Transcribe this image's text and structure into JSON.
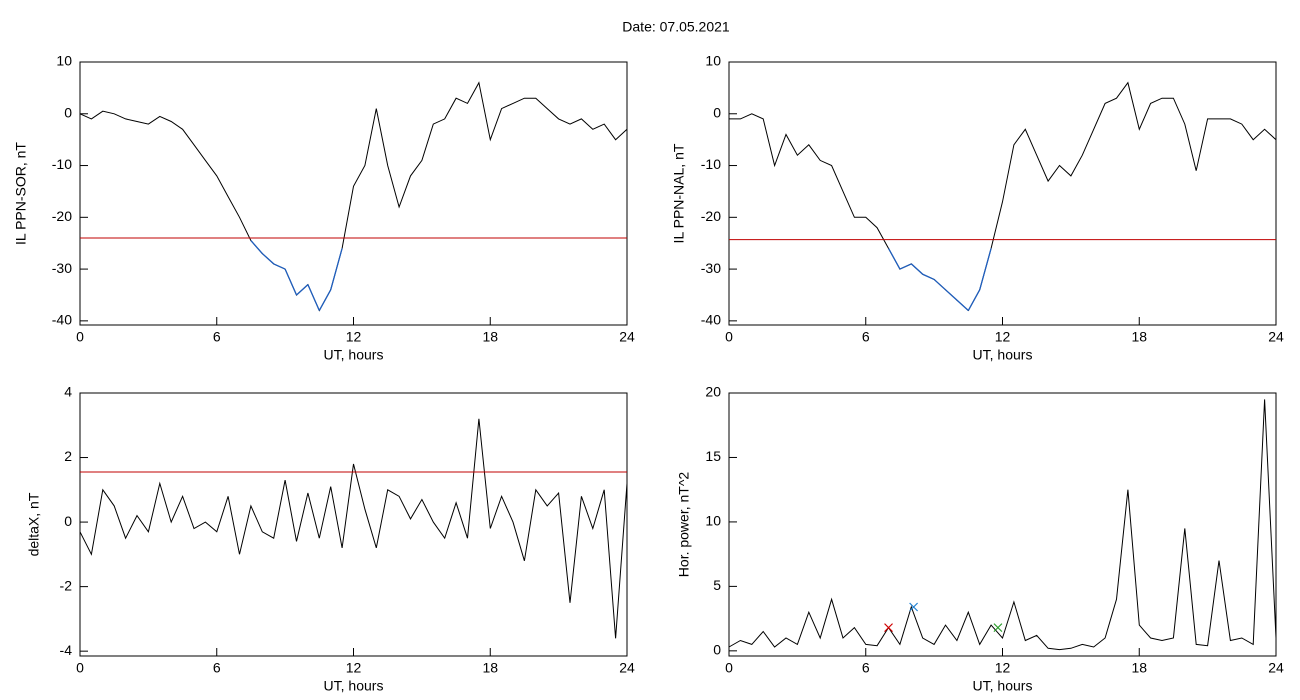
{
  "title": "Date:  07.05.2021",
  "chart_data": [
    {
      "type": "line",
      "ylabel": "IL PPN-SOR, nT",
      "xlabel": "UT, hours",
      "color": "#000000",
      "xlim": [
        0,
        24
      ],
      "xticks": [
        0,
        6,
        12,
        18,
        24
      ],
      "ylim": [
        -40.8,
        10
      ],
      "yticks": [
        10,
        0,
        -10,
        -20,
        -30,
        -40
      ],
      "threshold": {
        "value": -24,
        "color": "#c00000"
      },
      "highlight_color": "#1f5fbf",
      "x": [
        0,
        0.5,
        1,
        1.5,
        2,
        2.5,
        3,
        3.5,
        4,
        4.5,
        5,
        5.5,
        6,
        6.5,
        7,
        7.5,
        8,
        8.5,
        9,
        9.5,
        10,
        10.5,
        11,
        11.5,
        12,
        12.5,
        13,
        13.5,
        14,
        14.5,
        15,
        15.5,
        16,
        16.5,
        17,
        17.5,
        18,
        18.5,
        19,
        19.5,
        20,
        20.5,
        21,
        21.5,
        22,
        22.5,
        23,
        23.5,
        24
      ],
      "values": [
        0,
        -1,
        0.5,
        0,
        -1,
        -1.5,
        -2,
        -0.5,
        -1.5,
        -3,
        -6,
        -9,
        -12,
        -16,
        -20,
        -24.5,
        -27,
        -29,
        -30,
        -35,
        -33,
        -38,
        -34,
        -26,
        -14,
        -10,
        1,
        -10,
        -18,
        -12,
        -9,
        -2,
        -1,
        3,
        2,
        6,
        -5,
        1,
        2,
        3,
        3,
        1,
        -1,
        -2,
        -1,
        -3,
        -2,
        -5,
        -3
      ]
    },
    {
      "type": "line",
      "ylabel": "IL PPN-NAL, nT",
      "xlabel": "UT, hours",
      "color": "#000000",
      "xlim": [
        0,
        24
      ],
      "xticks": [
        0,
        6,
        12,
        18,
        24
      ],
      "ylim": [
        -40.8,
        10
      ],
      "yticks": [
        10,
        0,
        -10,
        -20,
        -30,
        -40
      ],
      "threshold": {
        "value": -24.3,
        "color": "#c00000"
      },
      "highlight_color": "#1f5fbf",
      "x": [
        0,
        0.5,
        1,
        1.5,
        2,
        2.5,
        3,
        3.5,
        4,
        4.5,
        5,
        5.5,
        6,
        6.5,
        7,
        7.5,
        8,
        8.5,
        9,
        9.5,
        10,
        10.5,
        11,
        11.5,
        12,
        12.5,
        13,
        13.5,
        14,
        14.5,
        15,
        15.5,
        16,
        16.5,
        17,
        17.5,
        18,
        18.5,
        19,
        19.5,
        20,
        20.5,
        21,
        21.5,
        22,
        22.5,
        23,
        23.5,
        24
      ],
      "values": [
        -1,
        -1,
        0,
        -1,
        -10,
        -4,
        -8,
        -6,
        -9,
        -10,
        -15,
        -20,
        -20,
        -22,
        -26,
        -30,
        -29,
        -31,
        -32,
        -34,
        -36,
        -38,
        -34,
        -26,
        -17,
        -6,
        -3,
        -8,
        -13,
        -10,
        -12,
        -8,
        -3,
        2,
        3,
        6,
        -3,
        2,
        3,
        3,
        -2,
        -11,
        -1,
        -1,
        -1,
        -2,
        -5,
        -3,
        -5
      ]
    },
    {
      "type": "line",
      "ylabel": "deltaX, nT",
      "xlabel": "UT, hours",
      "color": "#000000",
      "xlim": [
        0,
        24
      ],
      "xticks": [
        0,
        6,
        12,
        18,
        24
      ],
      "ylim": [
        -4.15,
        4
      ],
      "yticks": [
        4,
        2,
        0,
        -2,
        -4
      ],
      "threshold": {
        "value": 1.55,
        "color": "#c00000"
      },
      "x": [
        0,
        0.5,
        1,
        1.5,
        2,
        2.5,
        3,
        3.5,
        4,
        4.5,
        5,
        5.5,
        6,
        6.5,
        7,
        7.5,
        8,
        8.5,
        9,
        9.5,
        10,
        10.5,
        11,
        11.5,
        12,
        12.5,
        13,
        13.5,
        14,
        14.5,
        15,
        15.5,
        16,
        16.5,
        17,
        17.5,
        18,
        18.5,
        19,
        19.5,
        20,
        20.5,
        21,
        21.5,
        22,
        22.5,
        23,
        23.5,
        24
      ],
      "values": [
        -0.3,
        -1,
        1,
        0.5,
        -0.5,
        0.2,
        -0.3,
        1.2,
        0,
        0.8,
        -0.2,
        0,
        -0.3,
        0.8,
        -1,
        0.5,
        -0.3,
        -0.5,
        1.3,
        -0.6,
        0.9,
        -0.5,
        1.1,
        -0.8,
        1.8,
        0.4,
        -0.8,
        1,
        0.8,
        0.1,
        0.7,
        0,
        -0.5,
        0.6,
        -0.5,
        3.2,
        -0.2,
        0.8,
        0,
        -1.2,
        1,
        0.5,
        0.9,
        -2.5,
        0.8,
        -0.2,
        1,
        -3.6,
        1.2
      ]
    },
    {
      "type": "line",
      "ylabel": "Hor. power, nT^2",
      "xlabel": "UT, hours",
      "color": "#000000",
      "xlim": [
        0,
        24
      ],
      "xticks": [
        0,
        6,
        12,
        18,
        24
      ],
      "ylim": [
        -0.4,
        20
      ],
      "yticks": [
        20,
        15,
        10,
        5,
        0
      ],
      "x": [
        0,
        0.5,
        1,
        1.5,
        2,
        2.5,
        3,
        3.5,
        4,
        4.5,
        5,
        5.5,
        6,
        6.5,
        7,
        7.5,
        8,
        8.5,
        9,
        9.5,
        10,
        10.5,
        11,
        11.5,
        12,
        12.5,
        13,
        13.5,
        14,
        14.5,
        15,
        15.5,
        16,
        16.5,
        17,
        17.5,
        18,
        18.5,
        19,
        19.5,
        20,
        20.5,
        21,
        21.5,
        22,
        22.5,
        23,
        23.5,
        24
      ],
      "values": [
        0.3,
        0.8,
        0.5,
        1.5,
        0.3,
        1,
        0.5,
        3,
        1,
        4,
        1,
        1.8,
        0.5,
        0.4,
        1.8,
        0.5,
        3.4,
        1,
        0.5,
        2,
        0.8,
        3,
        0.5,
        2,
        1,
        3.8,
        0.8,
        1.2,
        0.2,
        0.1,
        0.2,
        0.5,
        0.3,
        1,
        4,
        12.5,
        2,
        1,
        0.8,
        1,
        9.5,
        0.5,
        0.4,
        7,
        0.8,
        1,
        0.5,
        19.5,
        1
      ],
      "markers": [
        {
          "x": 7,
          "y": 1.8,
          "color": "#d00000"
        },
        {
          "x": 8.1,
          "y": 3.4,
          "color": "#1f7fd0"
        },
        {
          "x": 11.8,
          "y": 1.8,
          "color": "#2a9d2a"
        }
      ]
    }
  ]
}
